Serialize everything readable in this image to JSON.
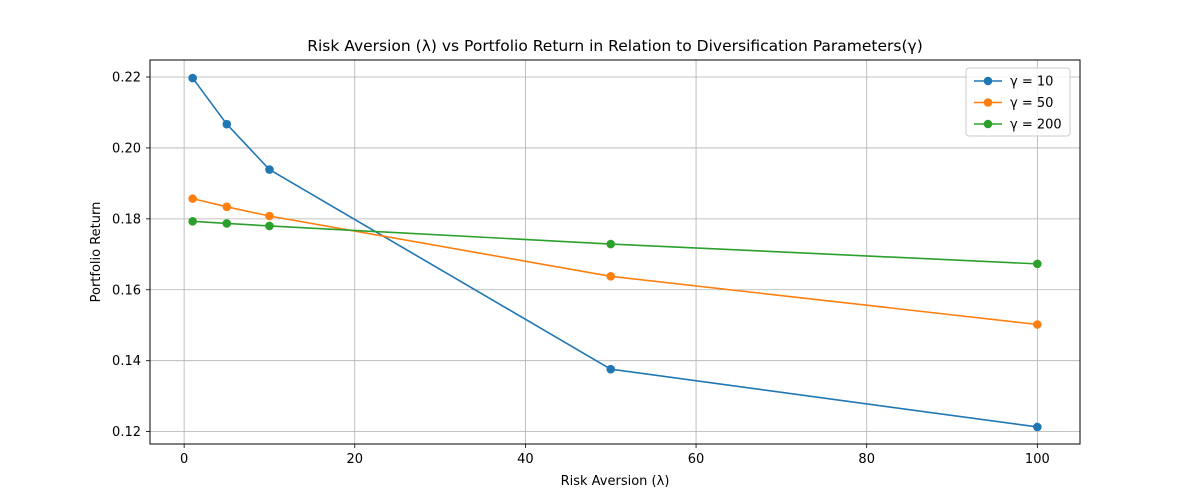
{
  "chart_data": {
    "type": "line",
    "title": "Risk Aversion (λ) vs Portfolio Return in Relation to Diversification Parameters(γ)",
    "xlabel": "Risk Aversion (λ)",
    "ylabel": "Portfolio Return",
    "xlim": [
      -4,
      105
    ],
    "ylim": [
      0.1165,
      0.2248
    ],
    "xticks": [
      0,
      20,
      40,
      60,
      80,
      100
    ],
    "xtick_labels": [
      "0",
      "20",
      "40",
      "60",
      "80",
      "100"
    ],
    "yticks": [
      0.12,
      0.14,
      0.16,
      0.18,
      0.2,
      0.22
    ],
    "ytick_labels": [
      "0.12",
      "0.14",
      "0.16",
      "0.18",
      "0.20",
      "0.22"
    ],
    "grid": true,
    "legend_position": "top-right",
    "x": [
      1,
      5,
      10,
      50,
      100
    ],
    "series": [
      {
        "name": "γ = 10",
        "color": "#1f77b4",
        "values": [
          0.2197,
          0.2067,
          0.1939,
          0.1376,
          0.1213
        ]
      },
      {
        "name": "γ = 50",
        "color": "#ff7f0e",
        "values": [
          0.1857,
          0.1834,
          0.1808,
          0.1638,
          0.1502
        ]
      },
      {
        "name": "γ = 200",
        "color": "#2ca02c",
        "values": [
          0.1793,
          0.1787,
          0.178,
          0.1729,
          0.1673
        ]
      }
    ]
  }
}
